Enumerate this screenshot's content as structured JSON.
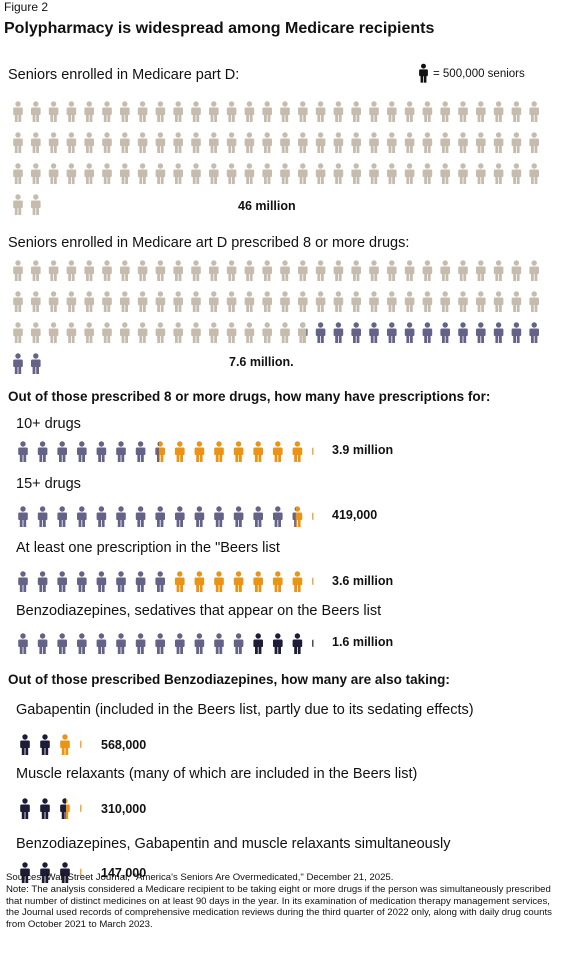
{
  "figure_label": "Figure 2",
  "title": "Polypharmacy is widespread among Medicare recipients",
  "legend": {
    "unit_text": "= 500,000 seniors",
    "unit_value": 500000
  },
  "colors": {
    "base": "#c5bcad",
    "prescribed": "#656288",
    "highlight": "#eb9314",
    "dark": "#1d1b36"
  },
  "headings": {
    "eight_plus": "Out of those prescribed 8 or more drugs, how many have prescriptions for:",
    "benzo": "Out of those prescribed Benzodiazepines, how many are also taking:"
  },
  "chart_data": {
    "type": "pictograph",
    "unit_value": 500000,
    "rows": [
      {
        "id": "partd",
        "label": "Seniors enrolled in Medicare part D:",
        "value_label": "46 million",
        "total": 46000000,
        "highlight": 0,
        "base_color": "base",
        "highlight_color": "base"
      },
      {
        "id": "eight",
        "label": "Seniors enrolled in Medicare art D prescribed 8 or more drugs:",
        "value_label": "7.6 million.",
        "total": 46000000,
        "highlight": 7600000,
        "base_color": "base",
        "highlight_color": "prescribed"
      },
      {
        "id": "ten",
        "label": "10+ drugs",
        "value_label": "3.9 million",
        "total": 7600000,
        "highlight": 3900000,
        "base_color": "prescribed",
        "highlight_color": "highlight"
      },
      {
        "id": "fifteen",
        "label": "15+ drugs",
        "value_label": "419,000",
        "total": 7600000,
        "highlight": 419000,
        "base_color": "prescribed",
        "highlight_color": "highlight"
      },
      {
        "id": "beers",
        "label": "At least one prescription in the \"Beers list",
        "value_label": "3.6 million",
        "total": 7600000,
        "highlight": 3600000,
        "base_color": "prescribed",
        "highlight_color": "highlight"
      },
      {
        "id": "benzo",
        "label": "Benzodiazepines, sedatives that appear on the Beers list",
        "value_label": "1.6 million",
        "total": 7600000,
        "highlight": 1600000,
        "base_color": "prescribed",
        "highlight_color": "dark"
      },
      {
        "id": "gaba",
        "label": "Gabapentin (included in the Beers list, partly due to its sedating effects)",
        "value_label": "568,000",
        "total": 1600000,
        "highlight": 568000,
        "base_color": "dark",
        "highlight_color": "highlight"
      },
      {
        "id": "muscle",
        "label": "Muscle relaxants (many of which are included in the Beers list)",
        "value_label": "310,000",
        "total": 1600000,
        "highlight": 310000,
        "base_color": "dark",
        "highlight_color": "highlight"
      },
      {
        "id": "all3",
        "label": "Benzodiazepines, Gabapentin and muscle relaxants simultaneously",
        "value_label": "147,000",
        "total": 1600000,
        "highlight": 147000,
        "base_color": "dark",
        "highlight_color": "highlight"
      }
    ]
  },
  "sources": "Sources: Wall Street Journal, \"America's Seniors Are Overmedicated,\" December 21, 2025.",
  "note": "Note: The analysis considered a Medicare recipient to be taking eight or more drugs if the person was simultaneously prescribed that number of distinct medicines on at least 90 days in the year. In its examination of medication therapy management services, the Journal used records of comprehensive medication reviews during the third quarter of 2022 only, along with daily drug counts from October 2021 to March 2023."
}
